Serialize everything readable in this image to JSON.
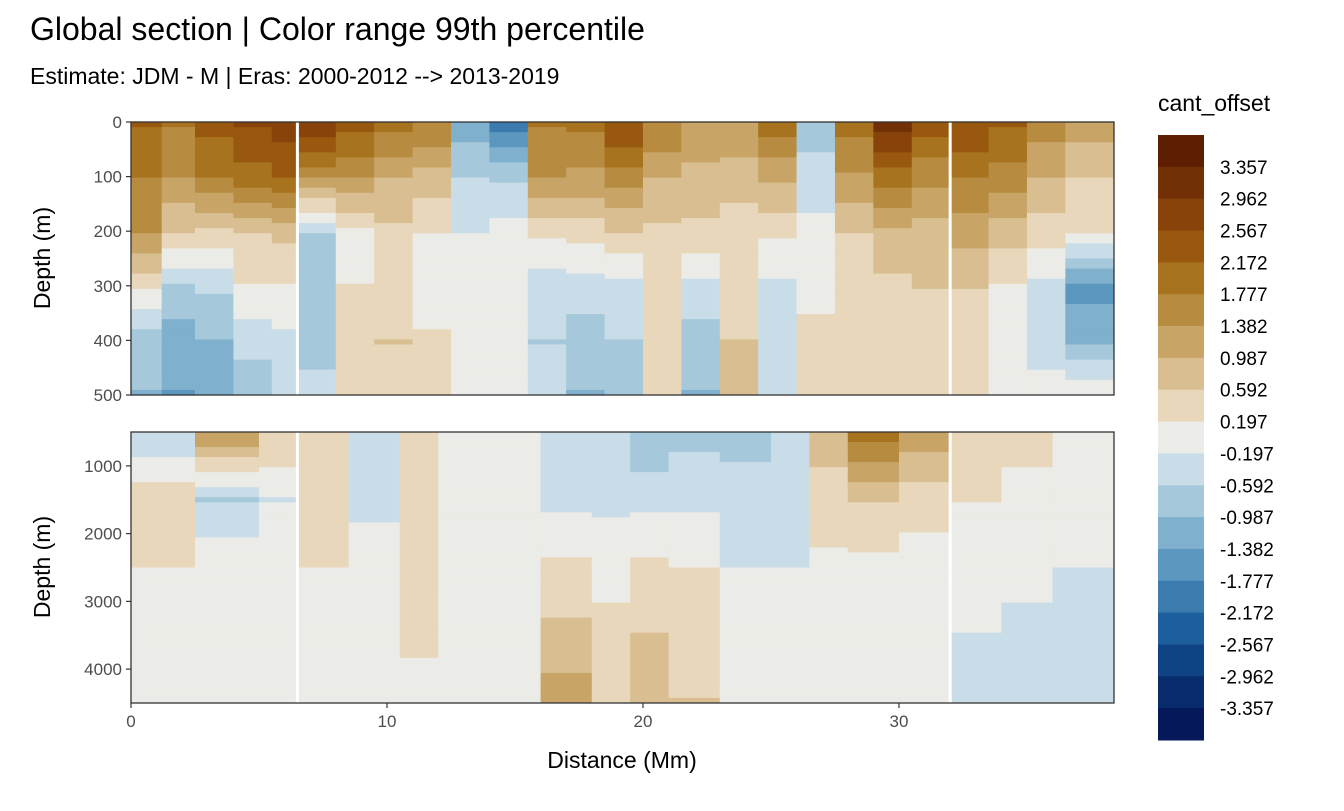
{
  "chart_data": {
    "type": "heatmap",
    "title": "Global section | Color range 99th percentile",
    "subtitle": "Estimate: JDM - M | Eras: 2000-2012 --> 2013-2019",
    "xlabel": "Distance (Mm)",
    "ylabel": "Depth (m)",
    "xlim": [
      0,
      38.4
    ],
    "x_ticks": [
      0,
      10,
      20,
      30
    ],
    "panels": [
      {
        "ylim": [
          0,
          500
        ],
        "y_ticks": [
          0,
          100,
          200,
          300,
          400,
          500
        ],
        "y_reversed": true
      },
      {
        "ylim": [
          500,
          4500
        ],
        "y_ticks": [
          1000,
          2000,
          3000,
          4000
        ],
        "y_reversed": true
      }
    ],
    "section_breaks_x": [
      6.5,
      32.0
    ],
    "legend": {
      "title": "cant_offset",
      "labels": [
        "3.357",
        "2.962",
        "2.567",
        "2.172",
        "1.777",
        "1.382",
        "0.987",
        "0.592",
        "0.197",
        "-0.197",
        "-0.592",
        "-0.987",
        "-1.382",
        "-1.777",
        "-2.172",
        "-2.567",
        "-2.962",
        "-3.357"
      ],
      "colors": [
        "#5e1e02",
        "#723007",
        "#88430b",
        "#98580f",
        "#a8731e",
        "#b88c40",
        "#c8a566",
        "#d8be90",
        "#e8d7bb",
        "#ebebe7",
        "#c9dde9",
        "#a6c8db",
        "#7fb0cd",
        "#5b97bf",
        "#3b7bae",
        "#1d5f9c",
        "#0f4384",
        "#082b6b",
        "#04185a"
      ]
    },
    "upper_columns": [
      {
        "x": [
          0,
          1.2
        ],
        "v": [
          2.2,
          1.8,
          1.4,
          0.3,
          -0.8,
          -1.0
        ]
      },
      {
        "x": [
          1.2,
          2.5
        ],
        "v": [
          1.8,
          1.4,
          0.6,
          -0.6,
          -1.2,
          -1.4
        ]
      },
      {
        "x": [
          2.5,
          4.0
        ],
        "v": [
          2.3,
          1.8,
          0.5,
          -0.5,
          -1.0,
          -1.2
        ]
      },
      {
        "x": [
          4.0,
          5.5
        ],
        "v": [
          2.6,
          2.0,
          0.6,
          0.2,
          -0.5,
          -0.8
        ]
      },
      {
        "x": [
          5.5,
          6.5
        ],
        "v": [
          2.8,
          2.2,
          0.7,
          0.2,
          -0.3,
          -0.5
        ]
      },
      {
        "x": [
          6.5,
          8.0
        ],
        "v": [
          3.0,
          1.5,
          -0.6,
          -0.6,
          -0.8,
          -0.4
        ]
      },
      {
        "x": [
          8.0,
          9.5
        ],
        "v": [
          2.4,
          1.4,
          0.1,
          0.2,
          0.4,
          0.2
        ]
      },
      {
        "x": [
          9.5,
          11.0
        ],
        "v": [
          2.0,
          1.0,
          0.5,
          0.4,
          0.6,
          0.4
        ]
      },
      {
        "x": [
          11.0,
          12.5
        ],
        "v": [
          1.8,
          0.8,
          0.2,
          -0.2,
          0.3,
          0.6
        ]
      },
      {
        "x": [
          12.5,
          14.0
        ],
        "v": [
          -1.2,
          -0.6,
          -0.2,
          0.0,
          0.1,
          0.0
        ]
      },
      {
        "x": [
          14.0,
          15.5
        ],
        "v": [
          -2.0,
          -0.7,
          0.0,
          0.0,
          0.0,
          0.0
        ]
      },
      {
        "x": [
          15.5,
          17.0
        ],
        "v": [
          1.8,
          1.4,
          0.3,
          -0.4,
          -0.6,
          -0.4
        ]
      },
      {
        "x": [
          17.0,
          18.5
        ],
        "v": [
          1.9,
          1.3,
          0.4,
          -0.4,
          -0.8,
          -1.0
        ]
      },
      {
        "x": [
          18.5,
          20.0
        ],
        "v": [
          2.6,
          1.6,
          0.6,
          -0.3,
          -0.6,
          -0.8
        ]
      },
      {
        "x": [
          20.0,
          21.5
        ],
        "v": [
          1.8,
          1.0,
          0.5,
          0.3,
          0.2,
          0.3
        ]
      },
      {
        "x": [
          21.5,
          23.0
        ],
        "v": [
          1.3,
          0.9,
          0.5,
          -0.3,
          -0.8,
          -1.0
        ]
      },
      {
        "x": [
          23.0,
          24.5
        ],
        "v": [
          1.4,
          0.8,
          0.4,
          0.3,
          0.6,
          0.8
        ]
      },
      {
        "x": [
          24.5,
          26.0
        ],
        "v": [
          2.0,
          1.1,
          0.3,
          -0.3,
          -0.5,
          -0.3
        ]
      },
      {
        "x": [
          26.0,
          27.5
        ],
        "v": [
          -0.8,
          -0.4,
          -0.1,
          0.1,
          0.3,
          0.2
        ]
      },
      {
        "x": [
          27.5,
          29.0
        ],
        "v": [
          2.0,
          1.3,
          0.6,
          0.3,
          0.2,
          0.2
        ]
      },
      {
        "x": [
          29.0,
          30.5
        ],
        "v": [
          3.2,
          2.0,
          0.9,
          0.5,
          0.4,
          0.5
        ]
      },
      {
        "x": [
          30.5,
          32.0
        ],
        "v": [
          2.4,
          1.5,
          0.8,
          0.6,
          0.5,
          0.5
        ]
      },
      {
        "x": [
          32.0,
          33.5
        ],
        "v": [
          2.6,
          1.8,
          1.2,
          0.6,
          0.4,
          0.3
        ]
      },
      {
        "x": [
          33.5,
          35.0
        ],
        "v": [
          2.2,
          1.6,
          0.8,
          0.2,
          -0.2,
          0.1
        ]
      },
      {
        "x": [
          35.0,
          36.5
        ],
        "v": [
          1.6,
          1.0,
          0.4,
          -0.3,
          -0.4,
          0.0
        ]
      },
      {
        "x": [
          36.5,
          38.4
        ],
        "v": [
          1.2,
          0.6,
          0.2,
          -1.5,
          -1.1,
          0.2
        ]
      }
    ],
    "lower_columns": [
      {
        "x": [
          0,
          2.5
        ],
        "v": [
          -0.6,
          0.5,
          0.2,
          0.0,
          0.0
        ]
      },
      {
        "x": [
          2.5,
          5.0
        ],
        "v": [
          1.4,
          -0.6,
          0.1,
          -0.1,
          -0.2
        ]
      },
      {
        "x": [
          5.0,
          6.5
        ],
        "v": [
          0.6,
          -0.2,
          0.2,
          0.0,
          0.0
        ]
      },
      {
        "x": [
          6.5,
          8.5
        ],
        "v": [
          0.4,
          0.3,
          0.2,
          0.0,
          0.0
        ]
      },
      {
        "x": [
          8.5,
          10.5
        ],
        "v": [
          -0.5,
          -0.4,
          0.2,
          0.0,
          0.0
        ]
      },
      {
        "x": [
          10.5,
          12.0
        ],
        "v": [
          0.4,
          0.5,
          0.4,
          0.3,
          0.0
        ]
      },
      {
        "x": [
          12.0,
          14.0
        ],
        "v": [
          0.0,
          0.0,
          0.0,
          0.0,
          0.0
        ]
      },
      {
        "x": [
          14.0,
          16.0
        ],
        "v": [
          -0.2,
          0.0,
          0.0,
          0.0,
          0.0
        ]
      },
      {
        "x": [
          16.0,
          18.0
        ],
        "v": [
          -0.6,
          -0.3,
          0.3,
          0.7,
          1.2
        ]
      },
      {
        "x": [
          18.0,
          19.5
        ],
        "v": [
          -0.6,
          -0.3,
          0.1,
          0.3,
          0.5
        ]
      },
      {
        "x": [
          19.5,
          21.0
        ],
        "v": [
          -1.0,
          -0.3,
          0.3,
          0.6,
          0.9
        ]
      },
      {
        "x": [
          21.0,
          23.0
        ],
        "v": [
          -0.7,
          -0.3,
          0.2,
          0.5,
          0.6
        ]
      },
      {
        "x": [
          23.0,
          25.0
        ],
        "v": [
          -0.8,
          -0.3,
          -0.2,
          0.0,
          0.0
        ]
      },
      {
        "x": [
          25.0,
          26.5
        ],
        "v": [
          -0.5,
          -0.3,
          -0.2,
          -0.1,
          0.0
        ]
      },
      {
        "x": [
          26.5,
          28.0
        ],
        "v": [
          0.8,
          0.4,
          0.1,
          0.0,
          0.0
        ]
      },
      {
        "x": [
          28.0,
          30.0
        ],
        "v": [
          2.0,
          0.6,
          0.1,
          0.0,
          0.0
        ]
      },
      {
        "x": [
          30.0,
          32.0
        ],
        "v": [
          1.2,
          0.4,
          0.0,
          0.0,
          0.0
        ]
      },
      {
        "x": [
          32.0,
          34.0
        ],
        "v": [
          0.5,
          0.2,
          0.0,
          -0.2,
          -0.3
        ]
      },
      {
        "x": [
          34.0,
          36.0
        ],
        "v": [
          0.3,
          0.1,
          -0.1,
          -0.3,
          -0.3
        ]
      },
      {
        "x": [
          36.0,
          38.4
        ],
        "v": [
          0.1,
          0.0,
          -0.2,
          -0.3,
          -0.3
        ]
      }
    ]
  }
}
